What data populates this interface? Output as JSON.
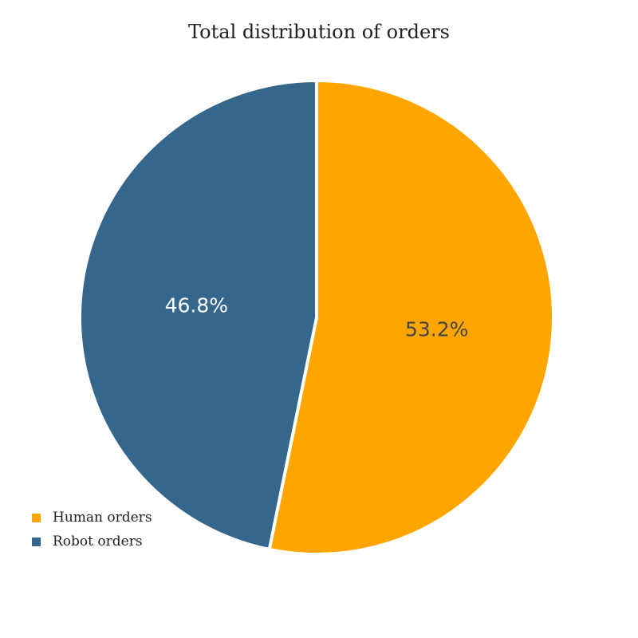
{
  "chart_data": {
    "type": "pie",
    "title": "Total distribution of orders",
    "slices": [
      {
        "label": "Human orders",
        "value": 53.2,
        "display": "53.2%",
        "color": "#FFA500",
        "label_color": "#444444"
      },
      {
        "label": "Robot orders",
        "value": 46.8,
        "display": "46.8%",
        "color": "#35678C",
        "label_color": "#ffffff"
      }
    ],
    "start_angle_deg": 0,
    "direction": "clockwise",
    "legend_position": "bottom-left"
  }
}
